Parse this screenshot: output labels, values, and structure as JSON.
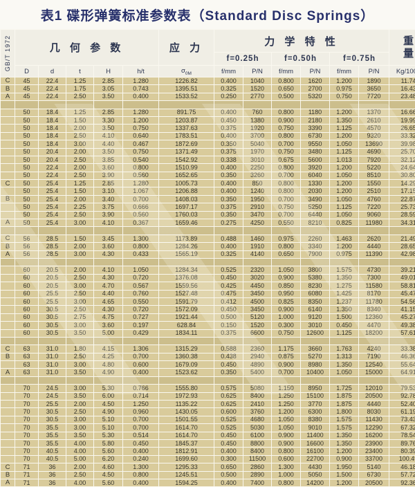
{
  "title": "表1 碟形弹簧标准参数表（Standard Disc Springs）",
  "standard": "GB/T 1972",
  "header": {
    "geometry_group": "几 何 参 数",
    "stress_group": "应 力",
    "mechanics_group": "力 学 特 性",
    "weight_line1": "重",
    "weight_line2": "量",
    "deflection_levels": [
      "f=0.25h",
      "f=0.50h",
      "f=0.75h"
    ],
    "geo_cols": [
      "D",
      "d",
      "t",
      "H",
      "h/t"
    ],
    "sigma": {
      "main": "σ",
      "sub": "0M"
    },
    "mech_cols": [
      "f/mm",
      "P/N",
      "f/mm",
      "P/N",
      "f/mm",
      "P/N"
    ],
    "weight_unit": "Kg/1000"
  },
  "rows": [
    [
      "C",
      "45",
      "22.4",
      "1.25",
      "2.85",
      "1.280",
      "1226.82",
      "0.400",
      "1040",
      "0.800",
      "1620",
      "1.200",
      "1890",
      "11.74"
    ],
    [
      "B",
      "45",
      "22.4",
      "1.75",
      "3.05",
      "0.743",
      "1395.51",
      "0.325",
      "1520",
      "0.650",
      "2700",
      "0.975",
      "3650",
      "16.43"
    ],
    [
      "A",
      "45",
      "22.4",
      "2.50",
      "3.50",
      "0.400",
      "1533.52",
      "0.250",
      "2770",
      "0.500",
      "5320",
      "0.750",
      "7720",
      "23.48"
    ],
    "SEP",
    [
      "",
      "50",
      "18.4",
      "1.25",
      "2.85",
      "1.280",
      "891.75",
      "0.400",
      "760",
      "0.800",
      "1180",
      "1.200",
      "1370",
      "16.66"
    ],
    [
      "",
      "50",
      "18.4",
      "1.50",
      "3.30",
      "1.200",
      "1203.87",
      "0.450",
      "1380",
      "0.900",
      "2180",
      "1.350",
      "2610",
      "19.99"
    ],
    [
      "",
      "50",
      "18.4",
      "2.00",
      "3.50",
      "0.750",
      "1337.63",
      "0.375",
      "1920",
      "0.750",
      "3390",
      "1.125",
      "4570",
      "26.65"
    ],
    [
      "",
      "50",
      "18.4",
      "2.50",
      "4.10",
      "0.640",
      "1783.51",
      "0.400",
      "3700",
      "0.800",
      "6730",
      "1.200",
      "9320",
      "33.32"
    ],
    [
      "",
      "50",
      "18.4",
      "3.00",
      "4.40",
      "0.467",
      "1872.69",
      "0.350",
      "5040",
      "0.700",
      "9550",
      "1.050",
      "13690",
      "39.98"
    ],
    [
      "",
      "50",
      "20.4",
      "2.00",
      "3.50",
      "0.750",
      "1371.49",
      "0.375",
      "1970",
      "0.750",
      "3480",
      "1.125",
      "4690",
      "25.70"
    ],
    [
      "",
      "50",
      "20.4",
      "2.50",
      "3.85",
      "0.540",
      "1542.92",
      "0.338",
      "3010",
      "0.675",
      "5600",
      "1.013",
      "7920",
      "32.12"
    ],
    [
      "",
      "50",
      "22.4",
      "2.00",
      "3.60",
      "0.800",
      "1510.99",
      "0.400",
      "2250",
      "0.800",
      "3920",
      "1.200",
      "5220",
      "24.64"
    ],
    [
      "",
      "50",
      "22.4",
      "2.50",
      "3.90",
      "0.560",
      "1652.65",
      "0.350",
      "3260",
      "0.700",
      "6040",
      "1.050",
      "8510",
      "30.80"
    ],
    [
      "C",
      "50",
      "25.4",
      "1.25",
      "2.85",
      "1.280",
      "1005.73",
      "0.400",
      "850",
      "0.800",
      "1330",
      "1.200",
      "1550",
      "14.29"
    ],
    [
      "",
      "50",
      "25.4",
      "1.50",
      "3.10",
      "1.067",
      "1206.88",
      "0.400",
      "1240",
      "0.800",
      "2030",
      "1.200",
      "2510",
      "17.15"
    ],
    [
      "B",
      "50",
      "25.4",
      "2.00",
      "3.40",
      "0.700",
      "1408.03",
      "0.350",
      "1950",
      "0.700",
      "3490",
      "1.050",
      "4760",
      "22.87"
    ],
    [
      "",
      "50",
      "25.4",
      "2.25",
      "3.75",
      "0.666",
      "1697.17",
      "0.375",
      "2910",
      "0.750",
      "5250",
      "1.125",
      "7220",
      "25.73"
    ],
    [
      "",
      "50",
      "25.4",
      "2.50",
      "3.90",
      "0.560",
      "1760.03",
      "0.350",
      "3470",
      "0.700",
      "6440",
      "1.050",
      "9060",
      "28.59"
    ],
    [
      "A",
      "50",
      "25.4",
      "3.00",
      "4.10",
      "0.367",
      "1659.46",
      "0.275",
      "4250",
      "0.550",
      "8210",
      "0.825",
      "11980",
      "34.31"
    ],
    "SEP",
    [
      "C",
      "56",
      "28.5",
      "1.50",
      "3.45",
      "1.300",
      "1173.89",
      "0.488",
      "1460",
      "0.975",
      "2260",
      "1.463",
      "2620",
      "21.49"
    ],
    [
      "B",
      "56",
      "28.5",
      "2.00",
      "3.60",
      "0.800",
      "1284.26",
      "0.400",
      "1910",
      "0.800",
      "3340",
      "1.200",
      "4440",
      "28.65"
    ],
    [
      "A",
      "56",
      "28.5",
      "3.00",
      "4.30",
      "0.433",
      "1565.19",
      "0.325",
      "4140",
      "0.650",
      "7900",
      "0.975",
      "11390",
      "42.98"
    ],
    "SEP",
    [
      "",
      "60",
      "20.5",
      "2.00",
      "4.10",
      "1.050",
      "1284.34",
      "0.525",
      "2320",
      "1.050",
      "3800",
      "1.575",
      "4730",
      "39.21"
    ],
    [
      "",
      "60",
      "20.5",
      "2.50",
      "4.30",
      "0.720",
      "1376.08",
      "0.450",
      "3020",
      "0.900",
      "5380",
      "1.350",
      "7300",
      "49.01"
    ],
    [
      "",
      "60",
      "20.5",
      "3.00",
      "4.70",
      "0.567",
      "1559.56",
      "0.425",
      "4450",
      "0.850",
      "8230",
      "1.275",
      "11580",
      "58.81"
    ],
    [
      "",
      "60",
      "25.5",
      "2.50",
      "4.40",
      "0.760",
      "1527.48",
      "0.475",
      "3450",
      "0.950",
      "6080",
      "1.425",
      "8170",
      "45.47"
    ],
    [
      "",
      "60",
      "25.5",
      "3.00",
      "4.65",
      "0.550",
      "1591.79",
      "0.412",
      "4500",
      "0.825",
      "8350",
      "1.237",
      "11780",
      "54.56"
    ],
    [
      "",
      "60",
      "30.5",
      "2.50",
      "4.30",
      "0.720",
      "1572.09",
      "0.450",
      "3450",
      "0.900",
      "6140",
      "1.350",
      "8340",
      "41.15"
    ],
    [
      "",
      "60",
      "30.5",
      "2.75",
      "4.75",
      "0.727",
      "1921.44",
      "0.500",
      "5120",
      "1.000",
      "9120",
      "1.500",
      "12360",
      "45.27"
    ],
    [
      "",
      "60",
      "30.5",
      "3.00",
      "3.60",
      "0.197",
      "628.84",
      "0.150",
      "1520",
      "0.300",
      "3010",
      "0.450",
      "4470",
      "49.38"
    ],
    [
      "",
      "60",
      "30.5",
      "3.50",
      "5.00",
      "0.429",
      "1834.11",
      "0.375",
      "6600",
      "0.750",
      "12600",
      "1.125",
      "18200",
      "57.61"
    ],
    "SEP",
    [
      "C",
      "63",
      "31.0",
      "1.80",
      "4.15",
      "1.306",
      "1315.29",
      "0.588",
      "2360",
      "1.175",
      "3660",
      "1.763",
      "4240",
      "33.38"
    ],
    [
      "B",
      "63",
      "31.0",
      "2.50",
      "4.25",
      "0.700",
      "1360.38",
      "0.438",
      "2940",
      "0.875",
      "5270",
      "1.313",
      "7190",
      "46.36"
    ],
    [
      "",
      "63",
      "31.0",
      "3.00",
      "4.80",
      "0.600",
      "1679.09",
      "0.450",
      "4890",
      "0.900",
      "8980",
      "1.350",
      "12540",
      "55.64"
    ],
    [
      "A",
      "63",
      "31.0",
      "3.50",
      "4.90",
      "0.400",
      "1523.62",
      "0.350",
      "5400",
      "0.700",
      "10400",
      "1.050",
      "15000",
      "64.91"
    ],
    "SEP",
    [
      "",
      "70",
      "24.5",
      "3.00",
      "5.30",
      "0.766",
      "1555.80",
      "0.575",
      "5080",
      "1.150",
      "8950",
      "1.725",
      "12010",
      "79.53"
    ],
    [
      "",
      "70",
      "24.5",
      "3.50",
      "6.00",
      "0.714",
      "1972.93",
      "0.625",
      "8400",
      "1.250",
      "15100",
      "1.875",
      "20500",
      "92.78"
    ],
    [
      "",
      "70",
      "25.5",
      "2.00",
      "4.50",
      "1.250",
      "1135.22",
      "0.625",
      "2410",
      "1.250",
      "3770",
      "1.875",
      "4440",
      "52.40"
    ],
    [
      "",
      "70",
      "30.5",
      "2.50",
      "4.90",
      "0.960",
      "1430.05",
      "0.600",
      "3760",
      "1.200",
      "6300",
      "1.800",
      "8030",
      "61.19"
    ],
    [
      "",
      "70",
      "30.5",
      "3.00",
      "5.10",
      "0.700",
      "1501.55",
      "0.525",
      "4680",
      "1.050",
      "8380",
      "1.575",
      "11430",
      "73.43"
    ],
    [
      "",
      "70",
      "35.5",
      "3.00",
      "5.10",
      "0.700",
      "1614.70",
      "0.525",
      "5030",
      "1.050",
      "9010",
      "1.575",
      "12290",
      "67.32"
    ],
    [
      "",
      "70",
      "35.5",
      "3.50",
      "5.30",
      "0.514",
      "1614.70",
      "0.450",
      "6100",
      "0.900",
      "11400",
      "1.350",
      "16200",
      "78.54"
    ],
    [
      "",
      "70",
      "35.5",
      "4.00",
      "5.80",
      "0.450",
      "1845.37",
      "0.450",
      "8800",
      "0.900",
      "16600",
      "1.350",
      "23900",
      "89.76"
    ],
    [
      "",
      "70",
      "40.5",
      "4.00",
      "5.60",
      "0.400",
      "1812.91",
      "0.400",
      "8400",
      "0.800",
      "16100",
      "1.200",
      "23400",
      "80.39"
    ],
    [
      "",
      "70",
      "40.5",
      "5.00",
      "6.20",
      "0.240",
      "1699.60",
      "0.300",
      "11500",
      "0.600",
      "22700",
      "0.900",
      "33700",
      "100.49"
    ],
    [
      "C",
      "71",
      "36",
      "2.00",
      "4.60",
      "1.300",
      "1295.33",
      "0.650",
      "2860",
      "1.300",
      "4430",
      "1.950",
      "5140",
      "46.18"
    ],
    [
      "B",
      "71",
      "36",
      "2.50",
      "4.50",
      "0.800",
      "1245.51",
      "0.500",
      "2890",
      "1.000",
      "5050",
      "1.500",
      "6730",
      "57.72"
    ],
    [
      "A",
      "71",
      "36",
      "4.00",
      "5.60",
      "0.400",
      "1594.25",
      "0.400",
      "7400",
      "0.800",
      "14200",
      "1.200",
      "20500",
      "92.36"
    ]
  ]
}
